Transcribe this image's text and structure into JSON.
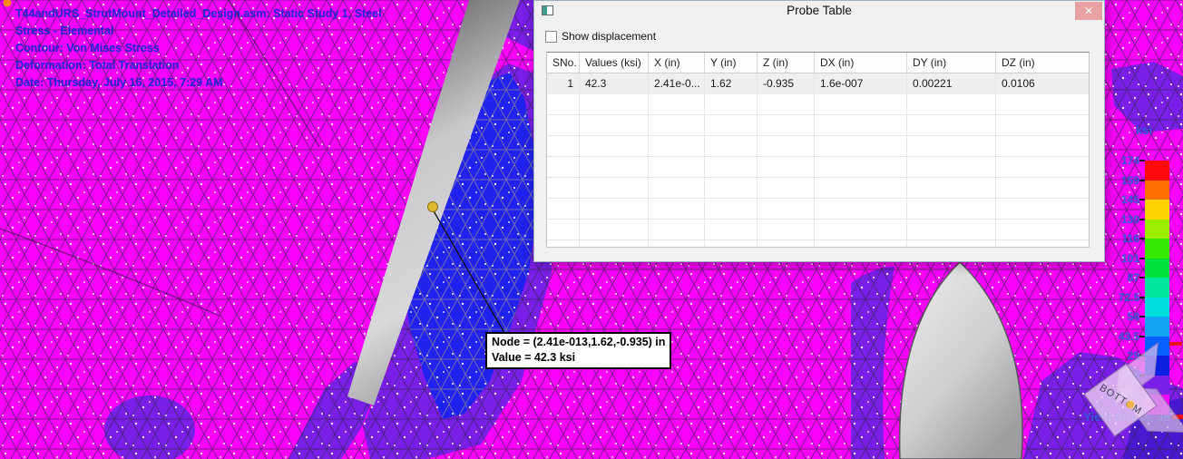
{
  "viewport": {
    "info_lines": [
      "T44andURS_StrutMount_Detailed_Design.asm: Static Study 1, Steel",
      "Stress - Elemental",
      "Contour: Von Mises Stress",
      "Deformation: Total Translation",
      "Date: Thursday, July 16, 2015, 7:29 AM"
    ],
    "callout": {
      "line1": "Node = (2.41e-013,1.62,-0.935) in",
      "line2": "Value = 42.3 ksi"
    },
    "colors": {
      "background": "#ff00ff",
      "high_gradient_patch": "#2222ee",
      "transition_patch": "#7a1fe8",
      "info_text": "#2626d8",
      "legend_text": "#3c5ce0"
    }
  },
  "dialog": {
    "title": "Probe Table",
    "close_label": "✕",
    "checkbox_label": "Show displacement",
    "checkbox_checked": false,
    "table": {
      "headers": [
        "SNo.",
        "Values (ksi)",
        "X (in)",
        "Y (in)",
        "Z (in)",
        "DX (in)",
        "DY (in)",
        "DZ (in)"
      ],
      "rows": [
        [
          "1",
          "42.3",
          "2.41e-0...",
          "1.62",
          "-0.935",
          "1.6e-007",
          "0.00221",
          "0.0106"
        ]
      ],
      "empty_row_count": 8
    }
  },
  "legend": {
    "unit": "ksi",
    "ticks": [
      "174",
      "159",
      "145",
      "130",
      "116",
      "101",
      "87",
      "72.5",
      "58",
      "43.5",
      "29",
      "14.5",
      "0.0046"
    ],
    "colors": [
      "#fd0a0a",
      "#fd7000",
      "#fdd300",
      "#9cee00",
      "#37e800",
      "#00e33c",
      "#00e69c",
      "#00dede",
      "#13a4f4",
      "#0560fd",
      "#0a1fe0",
      "#7a1fe8",
      "#fb02fb"
    ],
    "yield_label": "Yield Stress, 38",
    "yield_value": 38,
    "tick_step_value": 14.5,
    "marker_color": "#e81212"
  },
  "view_cube": {
    "label": "BOTTOM"
  }
}
